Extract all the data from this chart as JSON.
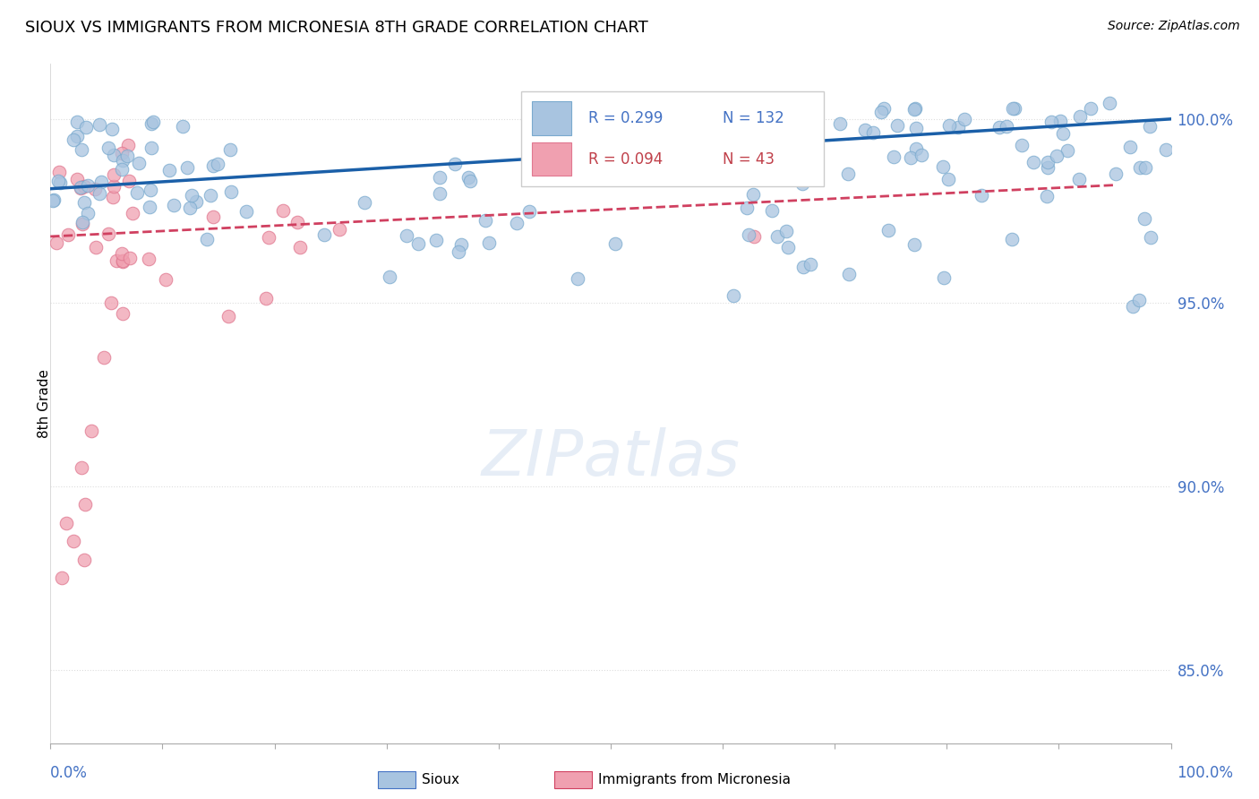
{
  "title": "SIOUX VS IMMIGRANTS FROM MICRONESIA 8TH GRADE CORRELATION CHART",
  "source": "Source: ZipAtlas.com",
  "ylabel": "8th Grade",
  "y_ticks": [
    100.0,
    95.0,
    90.0,
    85.0
  ],
  "xlim": [
    0.0,
    1.0
  ],
  "ylim": [
    83.0,
    101.5
  ],
  "legend_blue_R": "R = 0.299",
  "legend_blue_N": "N = 132",
  "legend_pink_R": "R = 0.094",
  "legend_pink_N": "N = 43",
  "blue_color": "#a8c4e0",
  "blue_edge_color": "#7aaace",
  "blue_line_color": "#1a5fa8",
  "pink_color": "#f0a0b0",
  "pink_edge_color": "#e07890",
  "pink_line_color": "#d04060",
  "grid_color": "#dddddd",
  "watermark": "ZIPatlas",
  "title_fontsize": 13,
  "source_fontsize": 10,
  "tick_fontsize": 12,
  "legend_fontsize": 12
}
